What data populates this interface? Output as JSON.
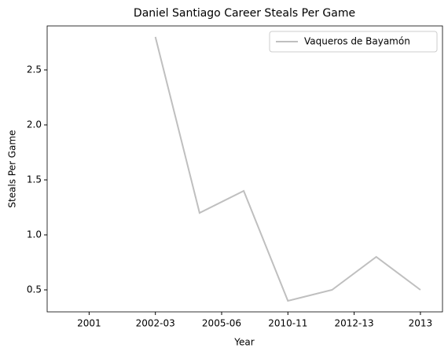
{
  "chart_data": {
    "type": "line",
    "title": "Daniel Santiago Career Steals Per Game",
    "xlabel": "Year",
    "ylabel": "Steals Per Game",
    "x": [
      1,
      2,
      3,
      4,
      5,
      6,
      7
    ],
    "series": [
      {
        "name": "Vaqueros de Bayamón",
        "color": "#bfbfbf",
        "values": [
          2.8,
          1.2,
          1.4,
          0.4,
          0.5,
          0.8,
          0.5
        ]
      }
    ],
    "xlim": [
      -1.45,
      7.5
    ],
    "xticks": [
      {
        "value": -0.5,
        "label": "2001"
      },
      {
        "value": 1,
        "label": "2002-03"
      },
      {
        "value": 2.5,
        "label": "2005-06"
      },
      {
        "value": 4,
        "label": "2010-11"
      },
      {
        "value": 5.5,
        "label": "2012-13"
      },
      {
        "value": 7,
        "label": "2013"
      }
    ],
    "ylim": [
      0.3,
      2.9
    ],
    "yticks": [
      0.5,
      {
        "value": 1,
        "label": "1.0"
      },
      1.5,
      {
        "value": 2,
        "label": "2.0"
      },
      2.5
    ],
    "legend": "upper right",
    "grid": false
  }
}
